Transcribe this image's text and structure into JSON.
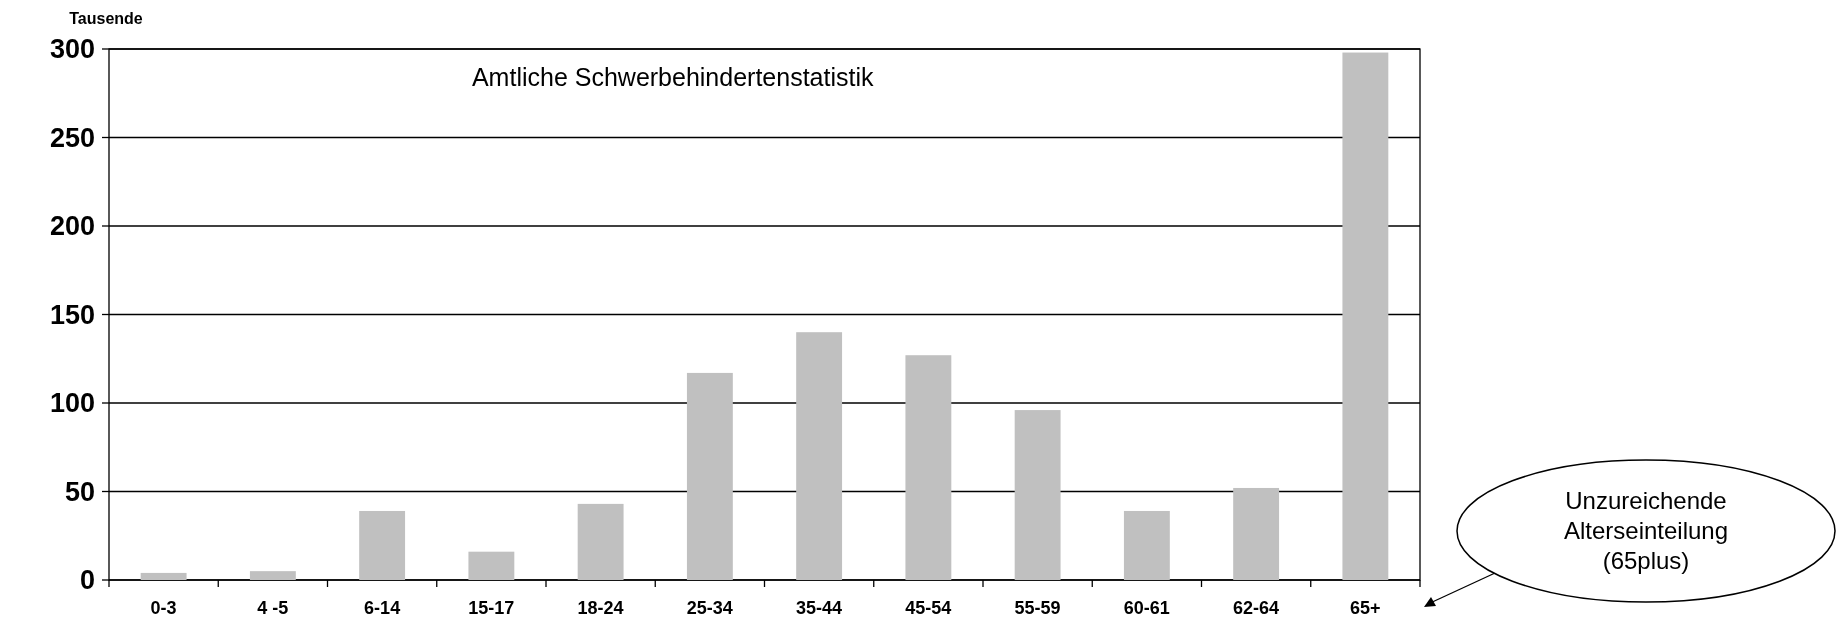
{
  "chart_data": {
    "type": "bar",
    "title": "Amtliche Schwerbehindertenstatistik",
    "ylabel": "Tausende",
    "categories": [
      "0-3",
      "4 -5",
      "6-14",
      "15-17",
      "18-24",
      "25-34",
      "35-44",
      "45-54",
      "55-59",
      "60-61",
      "62-64",
      "65+"
    ],
    "values": [
      4,
      5,
      39,
      16,
      43,
      117,
      140,
      127,
      96,
      39,
      52,
      298
    ],
    "color": "#c0c0c0",
    "ylim": [
      0,
      300
    ],
    "yticks": [
      0,
      50,
      100,
      150,
      200,
      250,
      300
    ],
    "grid": "y",
    "annotations": [
      "Unzureichende Alterseinteilung (65plus)"
    ]
  }
}
